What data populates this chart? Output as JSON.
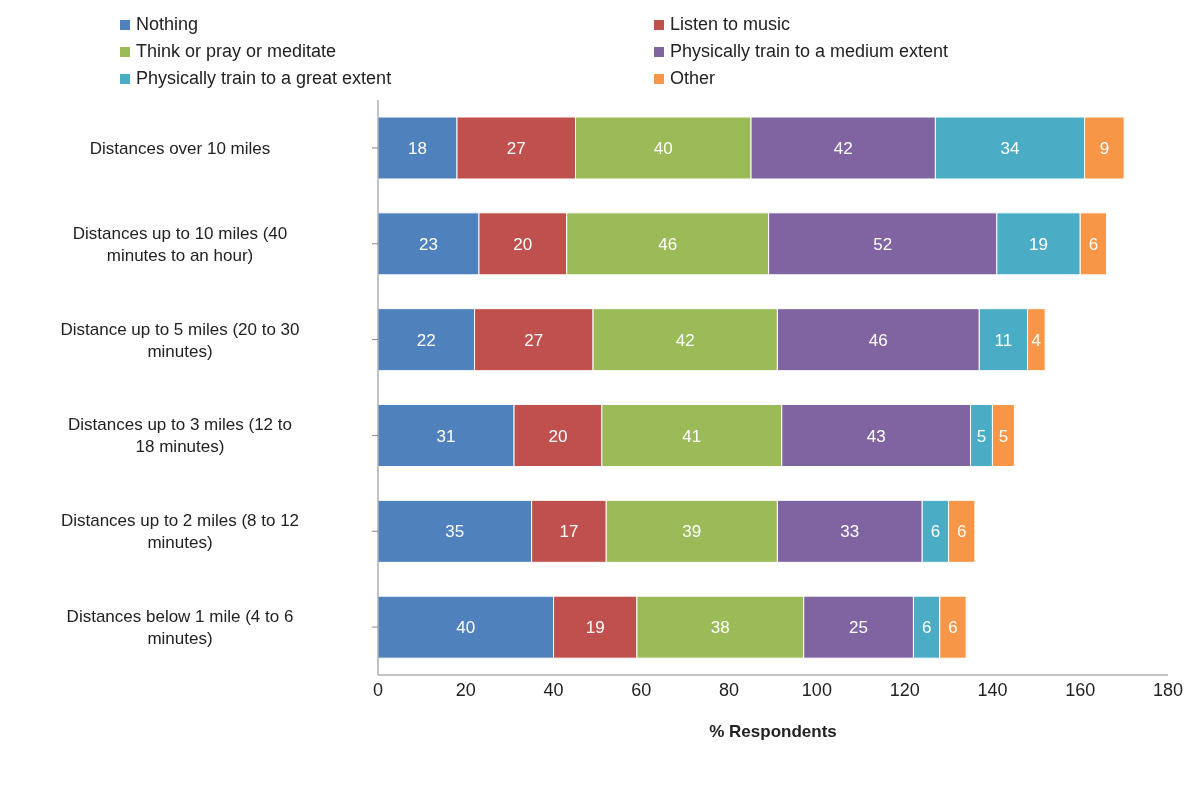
{
  "chart_data": {
    "type": "bar",
    "orientation": "horizontal",
    "stacked": true,
    "xlabel": "% Respondents",
    "categories": [
      "Distances over 10 miles",
      "Distances up to 10 miles (40 minutes to an hour)",
      "Distance up to 5 miles (20 to 30 minutes)",
      "Distances up to 3 miles (12 to 18 minutes)",
      "Distances up to 2 miles (8 to 12 minutes)",
      "Distances below 1 mile (4 to 6 minutes)"
    ],
    "series": [
      {
        "name": "Nothing",
        "color": "#4f81bd",
        "values": [
          18,
          23,
          22,
          31,
          35,
          40
        ]
      },
      {
        "name": "Listen to music",
        "color": "#c0504d",
        "values": [
          27,
          20,
          27,
          20,
          17,
          19
        ]
      },
      {
        "name": "Think or pray or meditate",
        "color": "#9bbb59",
        "values": [
          40,
          46,
          42,
          41,
          39,
          38
        ]
      },
      {
        "name": "Physically train to a medium extent",
        "color": "#8064a2",
        "values": [
          42,
          52,
          46,
          43,
          33,
          25
        ]
      },
      {
        "name": "Physically train to a great extent",
        "color": "#4bacc6",
        "values": [
          34,
          19,
          11,
          5,
          6,
          6
        ]
      },
      {
        "name": "Other",
        "color": "#f79646",
        "values": [
          9,
          6,
          4,
          5,
          6,
          6
        ]
      }
    ],
    "xlim": [
      0,
      180
    ],
    "xticks": [
      0,
      20,
      40,
      60,
      80,
      100,
      120,
      140,
      160,
      180
    ],
    "data_labels": true,
    "legend": "top"
  }
}
